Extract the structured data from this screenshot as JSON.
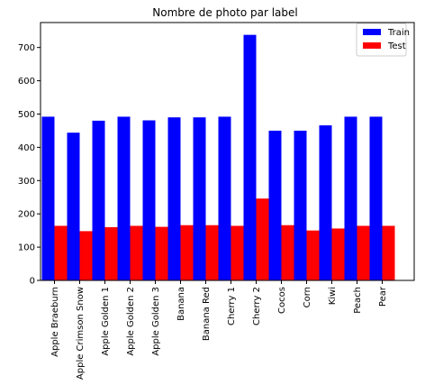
{
  "chart_data": {
    "type": "bar",
    "title": "Nombre de photo par label",
    "xlabel": "",
    "ylabel": "",
    "categories": [
      "Apple Braeburn",
      "Apple Crimson Snow",
      "Apple Golden 1",
      "Apple Golden 2",
      "Apple Golden 3",
      "Banana",
      "Banana Red",
      "Cherry 1",
      "Cherry 2",
      "Cocos",
      "Corn",
      "Kiwi",
      "Peach",
      "Pear"
    ],
    "series": [
      {
        "name": "Train",
        "color": "#0000ff",
        "values": [
          492,
          444,
          480,
          492,
          481,
          490,
          490,
          492,
          738,
          450,
          450,
          466,
          492,
          492
        ]
      },
      {
        "name": "Test",
        "color": "#ff0000",
        "values": [
          164,
          148,
          160,
          164,
          161,
          166,
          166,
          164,
          246,
          166,
          150,
          156,
          164,
          164
        ]
      }
    ],
    "ylim": [
      0,
      775
    ],
    "yticks": [
      0,
      100,
      200,
      300,
      400,
      500,
      600,
      700
    ],
    "grid": false,
    "legend_position": "top-right"
  }
}
